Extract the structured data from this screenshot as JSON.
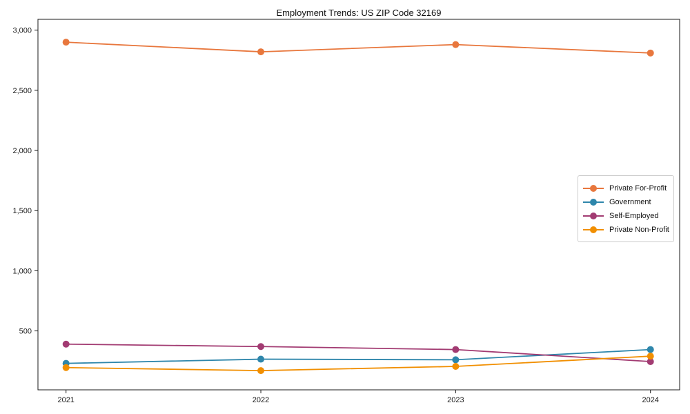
{
  "chart_data": {
    "type": "line",
    "title": "Employment Trends: US ZIP Code 32169",
    "x": [
      2021,
      2022,
      2023,
      2024
    ],
    "xtick_labels": [
      "2021",
      "2022",
      "2023",
      "2024"
    ],
    "series": [
      {
        "name": "Private For-Profit",
        "color": "#E8773D",
        "values": [
          2900,
          2820,
          2880,
          2810
        ]
      },
      {
        "name": "Government",
        "color": "#2E86AB",
        "values": [
          230,
          265,
          260,
          345
        ]
      },
      {
        "name": "Self-Employed",
        "color": "#A23B72",
        "values": [
          390,
          370,
          345,
          245
        ]
      },
      {
        "name": "Private Non-Profit",
        "color": "#F18F01",
        "values": [
          195,
          170,
          205,
          290
        ]
      }
    ],
    "yticks": [
      500,
      1000,
      1500,
      2000,
      2500,
      3000
    ],
    "ytick_labels": [
      "500",
      "1,000",
      "1,500",
      "2,000",
      "2,500",
      "3,000"
    ],
    "ylim": [
      10,
      3090
    ],
    "xlabel": "",
    "ylabel": "",
    "grid": false,
    "legend_position": "center right",
    "marker": "circle",
    "frame": "box",
    "axis_color": "#1a1a1a",
    "background": "#ffffff"
  }
}
